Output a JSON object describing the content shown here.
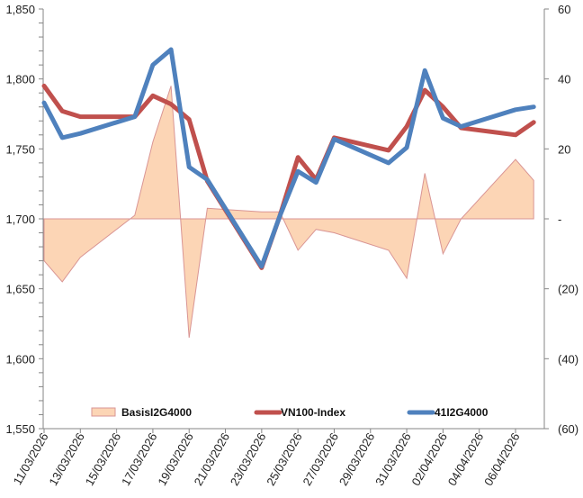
{
  "chart_data": {
    "type": "line",
    "title": "",
    "xlabel": "",
    "ylabel": "",
    "y2label": "",
    "grid": false,
    "legend_position": "bottom-inside",
    "x": [
      "11/03/2026",
      "12/03/2026",
      "13/03/2026",
      "16/03/2026",
      "17/03/2026",
      "18/03/2026",
      "19/03/2026",
      "20/03/2026",
      "23/03/2026",
      "24/03/2026",
      "25/03/2026",
      "26/03/2026",
      "27/03/2026",
      "30/03/2026",
      "31/03/2026",
      "01/04/2026",
      "02/04/2026",
      "03/04/2026",
      "06/04/2026",
      "07/04/2026"
    ],
    "x_day_offsets": [
      0,
      1,
      2,
      5,
      6,
      7,
      8,
      9,
      12,
      13,
      14,
      15,
      16,
      19,
      20,
      21,
      22,
      23,
      26,
      27
    ],
    "x_tick_labels": [
      "11/03/2026",
      "13/03/2026",
      "15/03/2026",
      "17/03/2026",
      "19/03/2026",
      "21/03/2026",
      "23/03/2026",
      "25/03/2026",
      "27/03/2026",
      "29/03/2026",
      "31/03/2026",
      "02/04/2026",
      "04/04/2026",
      "06/04/2026"
    ],
    "x_tick_day_offsets": [
      0,
      2,
      4,
      6,
      8,
      10,
      12,
      14,
      16,
      18,
      20,
      22,
      24,
      26
    ],
    "xlim_days": [
      0,
      28
    ],
    "ylim": [
      1550,
      1850
    ],
    "y_tick_labels": [
      "1,850",
      "1,800",
      "1,750",
      "1,700",
      "1,650",
      "1,600",
      "1,550"
    ],
    "y_tick_values": [
      1850,
      1800,
      1750,
      1700,
      1650,
      1600,
      1550
    ],
    "y2lim": [
      -60,
      60
    ],
    "y2_tick_labels": [
      "60",
      "40",
      "20",
      "-",
      "(20)",
      "(40)",
      "(60)"
    ],
    "y2_tick_values": [
      60,
      40,
      20,
      0,
      -20,
      -40,
      -60
    ],
    "series": [
      {
        "name": "BasisI2G4000",
        "type": "area",
        "axis": "right",
        "color": "#fcd5b5",
        "stroke": "#d99594",
        "values": [
          -12,
          -18,
          -11,
          1,
          22,
          38,
          -34,
          3,
          2,
          2,
          -9,
          -3,
          -4,
          -9,
          -17,
          13,
          -10,
          0,
          17,
          11
        ]
      },
      {
        "name": "VN100-Index",
        "type": "line",
        "axis": "left",
        "color": "#c0504d",
        "values": [
          1795,
          1777,
          1773,
          1773,
          1788,
          1782,
          1771,
          1727,
          1665,
          1702,
          1744,
          1728,
          1758,
          1749,
          1766,
          1792,
          1780,
          1765,
          1760,
          1769
        ]
      },
      {
        "name": "41I2G4000",
        "type": "line",
        "axis": "left",
        "color": "#4f81bd",
        "values": [
          1783,
          1758,
          1761,
          1773,
          1810,
          1821,
          1737,
          1728,
          1666,
          1702,
          1734,
          1726,
          1757,
          1740,
          1751,
          1806,
          1772,
          1766,
          1778,
          1780
        ]
      }
    ]
  }
}
